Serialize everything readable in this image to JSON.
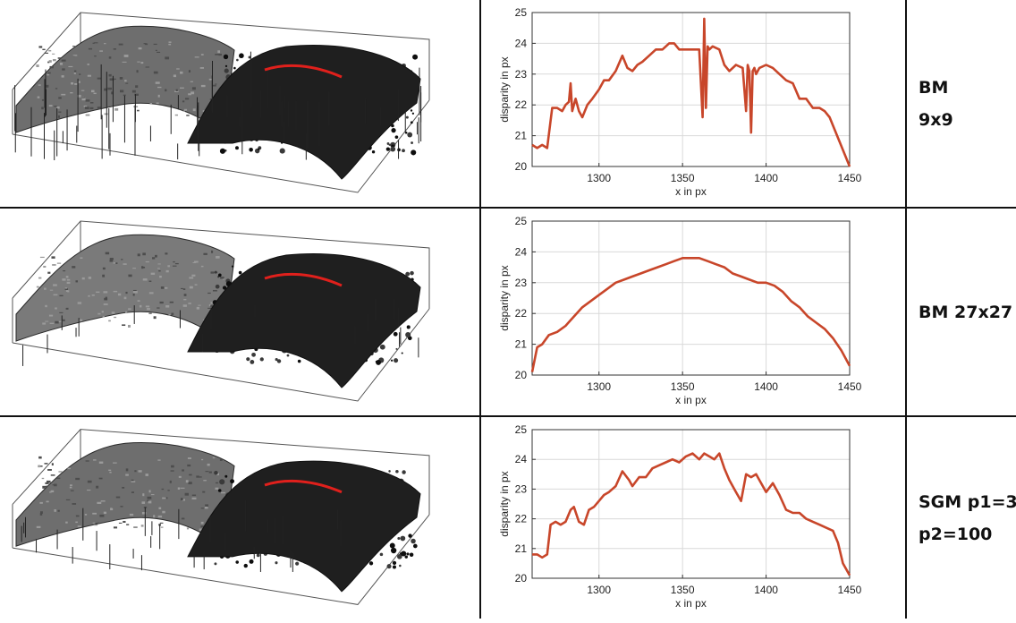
{
  "rows": [
    {
      "label_lines": [
        "BM",
        "9x9"
      ],
      "surface": {
        "name": "surface-bm-9x9",
        "roughness": 1.0
      }
    },
    {
      "label_lines": [
        "BM 27x27"
      ],
      "surface": {
        "name": "surface-bm-27x27",
        "roughness": 0.3
      }
    },
    {
      "label_lines": [
        "SGM p1=3",
        "p2=100"
      ],
      "surface": {
        "name": "surface-sgm",
        "roughness": 0.5
      }
    }
  ],
  "chart_data": [
    {
      "type": "line",
      "xlabel": "x in px",
      "ylabel": "disparity in px",
      "xlim": [
        1260,
        1450
      ],
      "ylim": [
        20,
        25
      ],
      "xticks": [
        1300,
        1350,
        1400,
        1450
      ],
      "yticks": [
        20,
        21,
        22,
        23,
        24,
        25
      ],
      "grid": true,
      "line_color": "#c8462a",
      "series": [
        {
          "x": [
            1260,
            1263,
            1266,
            1269,
            1272,
            1275,
            1278,
            1280,
            1282,
            1283,
            1284,
            1286,
            1288,
            1290,
            1293,
            1296,
            1300,
            1303,
            1306,
            1310,
            1314,
            1317,
            1320,
            1323,
            1326,
            1330,
            1334,
            1338,
            1342,
            1345,
            1348,
            1352,
            1356,
            1360,
            1362,
            1363,
            1364,
            1365,
            1366,
            1368,
            1372,
            1375,
            1378,
            1382,
            1386,
            1388,
            1389,
            1390,
            1391,
            1392,
            1393,
            1394,
            1396,
            1400,
            1404,
            1408,
            1412,
            1416,
            1420,
            1424,
            1428,
            1432,
            1435,
            1438,
            1441,
            1444,
            1447,
            1450
          ],
          "y": [
            20.7,
            20.6,
            20.7,
            20.6,
            21.9,
            21.9,
            21.8,
            22.0,
            22.1,
            22.7,
            21.8,
            22.2,
            21.8,
            21.6,
            22.0,
            22.2,
            22.5,
            22.8,
            22.8,
            23.1,
            23.6,
            23.2,
            23.1,
            23.3,
            23.4,
            23.6,
            23.8,
            23.8,
            24.0,
            24.0,
            23.8,
            23.8,
            23.8,
            23.8,
            21.6,
            24.8,
            21.9,
            23.9,
            23.8,
            23.9,
            23.8,
            23.3,
            23.1,
            23.3,
            23.2,
            21.8,
            23.3,
            23.1,
            21.1,
            23.1,
            23.2,
            23.0,
            23.2,
            23.3,
            23.2,
            23.0,
            22.8,
            22.7,
            22.2,
            22.2,
            21.9,
            21.9,
            21.8,
            21.6,
            21.2,
            20.8,
            20.4,
            20.0
          ]
        }
      ]
    },
    {
      "type": "line",
      "xlabel": "x in px",
      "ylabel": "disparity in px",
      "xlim": [
        1260,
        1450
      ],
      "ylim": [
        20,
        25
      ],
      "xticks": [
        1300,
        1350,
        1400,
        1450
      ],
      "yticks": [
        20,
        21,
        22,
        23,
        24,
        25
      ],
      "grid": true,
      "line_color": "#c8462a",
      "series": [
        {
          "x": [
            1260,
            1263,
            1266,
            1270,
            1275,
            1280,
            1285,
            1290,
            1295,
            1300,
            1305,
            1310,
            1315,
            1320,
            1325,
            1330,
            1335,
            1340,
            1345,
            1350,
            1355,
            1360,
            1365,
            1370,
            1375,
            1380,
            1385,
            1390,
            1395,
            1400,
            1405,
            1410,
            1415,
            1420,
            1425,
            1430,
            1435,
            1440,
            1445,
            1450
          ],
          "y": [
            20.1,
            20.9,
            21.0,
            21.3,
            21.4,
            21.6,
            21.9,
            22.2,
            22.4,
            22.6,
            22.8,
            23.0,
            23.1,
            23.2,
            23.3,
            23.4,
            23.5,
            23.6,
            23.7,
            23.8,
            23.8,
            23.8,
            23.7,
            23.6,
            23.5,
            23.3,
            23.2,
            23.1,
            23.0,
            23.0,
            22.9,
            22.7,
            22.4,
            22.2,
            21.9,
            21.7,
            21.5,
            21.2,
            20.8,
            20.3
          ]
        }
      ]
    },
    {
      "type": "line",
      "xlabel": "x in px",
      "ylabel": "disparity in px",
      "xlim": [
        1260,
        1450
      ],
      "ylim": [
        20,
        25
      ],
      "xticks": [
        1300,
        1350,
        1400,
        1450
      ],
      "yticks": [
        20,
        21,
        22,
        23,
        24,
        25
      ],
      "grid": true,
      "line_color": "#c8462a",
      "series": [
        {
          "x": [
            1260,
            1263,
            1266,
            1269,
            1271,
            1274,
            1277,
            1280,
            1283,
            1285,
            1288,
            1291,
            1294,
            1297,
            1300,
            1303,
            1306,
            1310,
            1314,
            1318,
            1320,
            1324,
            1328,
            1332,
            1336,
            1340,
            1344,
            1348,
            1352,
            1356,
            1360,
            1363,
            1366,
            1369,
            1372,
            1375,
            1378,
            1382,
            1385,
            1388,
            1391,
            1394,
            1397,
            1400,
            1404,
            1408,
            1412,
            1416,
            1420,
            1424,
            1428,
            1432,
            1436,
            1440,
            1443,
            1446,
            1450
          ],
          "y": [
            20.8,
            20.8,
            20.7,
            20.8,
            21.8,
            21.9,
            21.8,
            21.9,
            22.3,
            22.4,
            21.9,
            21.8,
            22.3,
            22.4,
            22.6,
            22.8,
            22.9,
            23.1,
            23.6,
            23.3,
            23.1,
            23.4,
            23.4,
            23.7,
            23.8,
            23.9,
            24.0,
            23.9,
            24.1,
            24.2,
            24.0,
            24.2,
            24.1,
            24.0,
            24.2,
            23.7,
            23.3,
            22.9,
            22.6,
            23.5,
            23.4,
            23.5,
            23.2,
            22.9,
            23.2,
            22.8,
            22.3,
            22.2,
            22.2,
            22.0,
            21.9,
            21.8,
            21.7,
            21.6,
            21.2,
            20.5,
            20.1
          ]
        }
      ]
    }
  ]
}
